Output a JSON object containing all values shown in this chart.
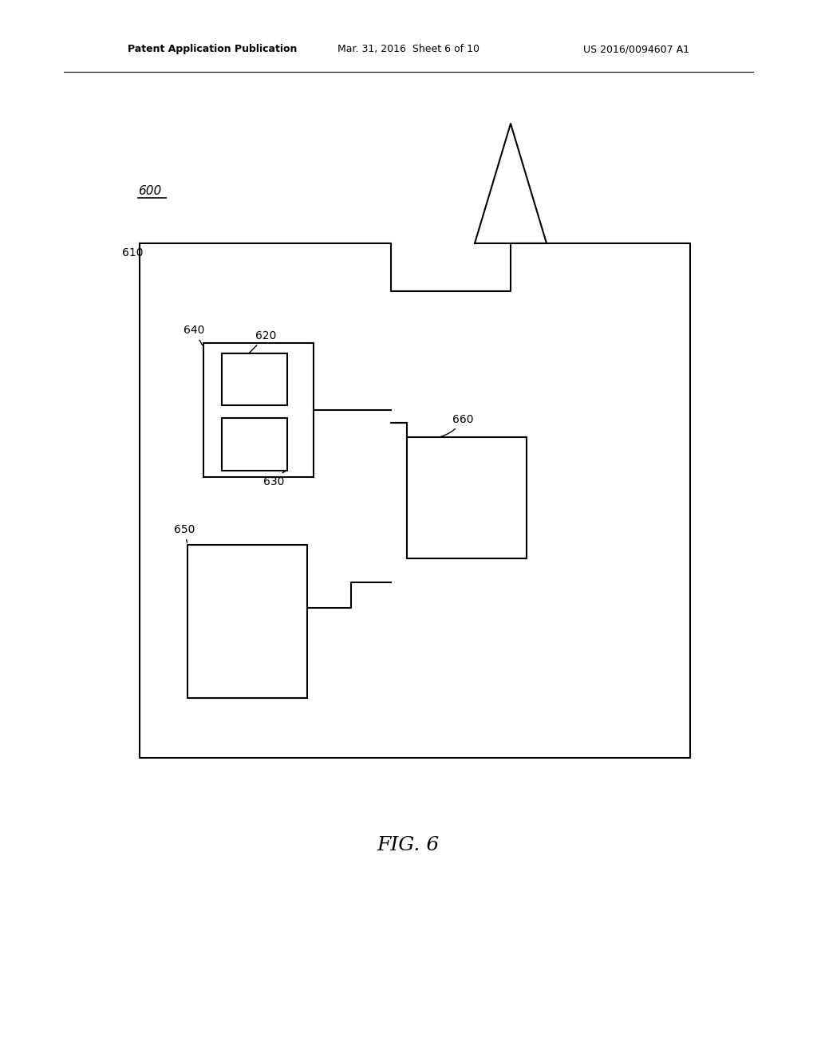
{
  "bg_color": "#ffffff",
  "line_color": "#000000",
  "header_text_left": "Patent Application Publication",
  "header_text_mid": "Mar. 31, 2016  Sheet 6 of 10",
  "header_text_right": "US 2016/0094607 A1",
  "fig_label": "FIG. 6",
  "label_600": "600",
  "label_610": "610",
  "label_620": "620",
  "label_630": "630",
  "label_640": "640",
  "label_650": "650",
  "label_660": "660",
  "lw": 1.5
}
